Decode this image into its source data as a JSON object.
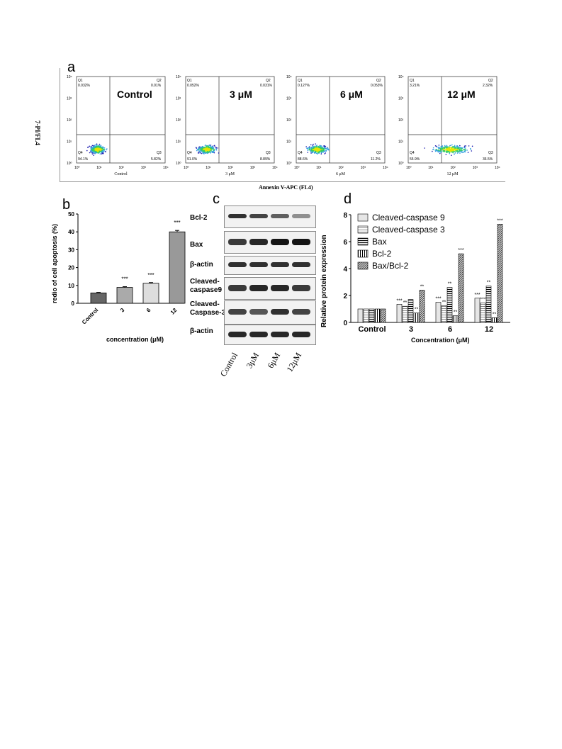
{
  "panel_a": {
    "letter": "a",
    "y_axis_label": "7-PI/FL4",
    "x_axis_label": "Annexin V-APC (FL4)",
    "ticks": [
      "10⁰",
      "10¹",
      "10²",
      "10³",
      "10⁴"
    ],
    "plots": [
      {
        "name": "Control",
        "subtitle": "Control",
        "q1_label": "Q1",
        "q2_label": "Q2",
        "q3_label": "Q3",
        "q4_label": "Q4",
        "q1": "0.032%",
        "q2": "0.01%",
        "q3": "5.82%",
        "q4": "94.1%"
      },
      {
        "name": "3 μM",
        "subtitle": "3 μM",
        "q1_label": "Q1",
        "q2_label": "Q2",
        "q3_label": "Q3",
        "q4_label": "Q4",
        "q1": "0.052%",
        "q2": "0.031%",
        "q3": "8.89%",
        "q4": "91.0%"
      },
      {
        "name": "6 μM",
        "subtitle": "6 μM",
        "q1_label": "Q1",
        "q2_label": "Q2",
        "q3_label": "Q3",
        "q4_label": "Q4",
        "q1": "0.127%",
        "q2": "0.053%",
        "q3": "11.2%",
        "q4": "88.6%"
      },
      {
        "name": "12 μM",
        "subtitle": "12 μM",
        "q1_label": "Q1",
        "q2_label": "Q2",
        "q3_label": "Q3",
        "q4_label": "Q4",
        "q1": "3.21%",
        "q2": "2.32%",
        "q3": "36.5%",
        "q4": "55.9%"
      }
    ]
  },
  "panel_b": {
    "letter": "b",
    "ylabel": "redio of cell apoptosis (%)",
    "xlabel": "concentration (μM)",
    "yticks": [
      "0",
      "10",
      "20",
      "30",
      "40",
      "50"
    ]
  },
  "panel_c": {
    "letter": "c",
    "rows": [
      "Bcl-2",
      "Bax",
      "β-actin",
      "Cleaved-\ncaspase9",
      "Cleaved-\nCaspase-3",
      "β-actin"
    ],
    "lanes": [
      "Control",
      "3μM",
      "6μM",
      "12μM"
    ]
  },
  "panel_d": {
    "letter": "d",
    "ylabel": "Relative protein expression",
    "xlabel": "Concentration (μM)",
    "yticks": [
      "0",
      "2",
      "4",
      "6",
      "8"
    ]
  },
  "chart_data": [
    {
      "type": "bar",
      "categories": [
        "Control",
        "3",
        "6",
        "12"
      ],
      "values": [
        5.8,
        8.9,
        11.2,
        40.0
      ],
      "errors": [
        0.3,
        0.4,
        0.4,
        0.8
      ],
      "significance": [
        "",
        "***",
        "***",
        "***"
      ],
      "ylim": [
        0,
        50
      ],
      "xlabel": "concentration (μM)",
      "ylabel": "redio of cell apoptosis (%)"
    },
    {
      "type": "bar",
      "categories": [
        "Control",
        "3",
        "6",
        "12"
      ],
      "series": [
        {
          "name": "Cleaved-caspase 9",
          "values": [
            1.0,
            1.35,
            1.5,
            1.8
          ],
          "sig": [
            "",
            "***",
            "***",
            "***"
          ]
        },
        {
          "name": "Cleaved-caspase 3",
          "values": [
            1.0,
            1.2,
            1.25,
            1.45
          ],
          "sig": [
            "",
            "**",
            "**",
            "***"
          ]
        },
        {
          "name": "Bax",
          "values": [
            1.0,
            1.7,
            2.6,
            2.7
          ],
          "sig": [
            "",
            "",
            "**",
            "**"
          ]
        },
        {
          "name": "Bcl-2",
          "values": [
            1.0,
            0.7,
            0.5,
            0.35
          ],
          "sig": [
            "",
            "**",
            "**",
            "**"
          ]
        },
        {
          "name": "Bax/Bcl-2",
          "values": [
            1.0,
            2.4,
            5.1,
            7.3
          ],
          "sig": [
            "",
            "**",
            "***",
            "***"
          ]
        }
      ],
      "ylim": [
        0,
        8
      ],
      "xlabel": "Concentration (μM)",
      "ylabel": "Relative protein expression"
    }
  ]
}
